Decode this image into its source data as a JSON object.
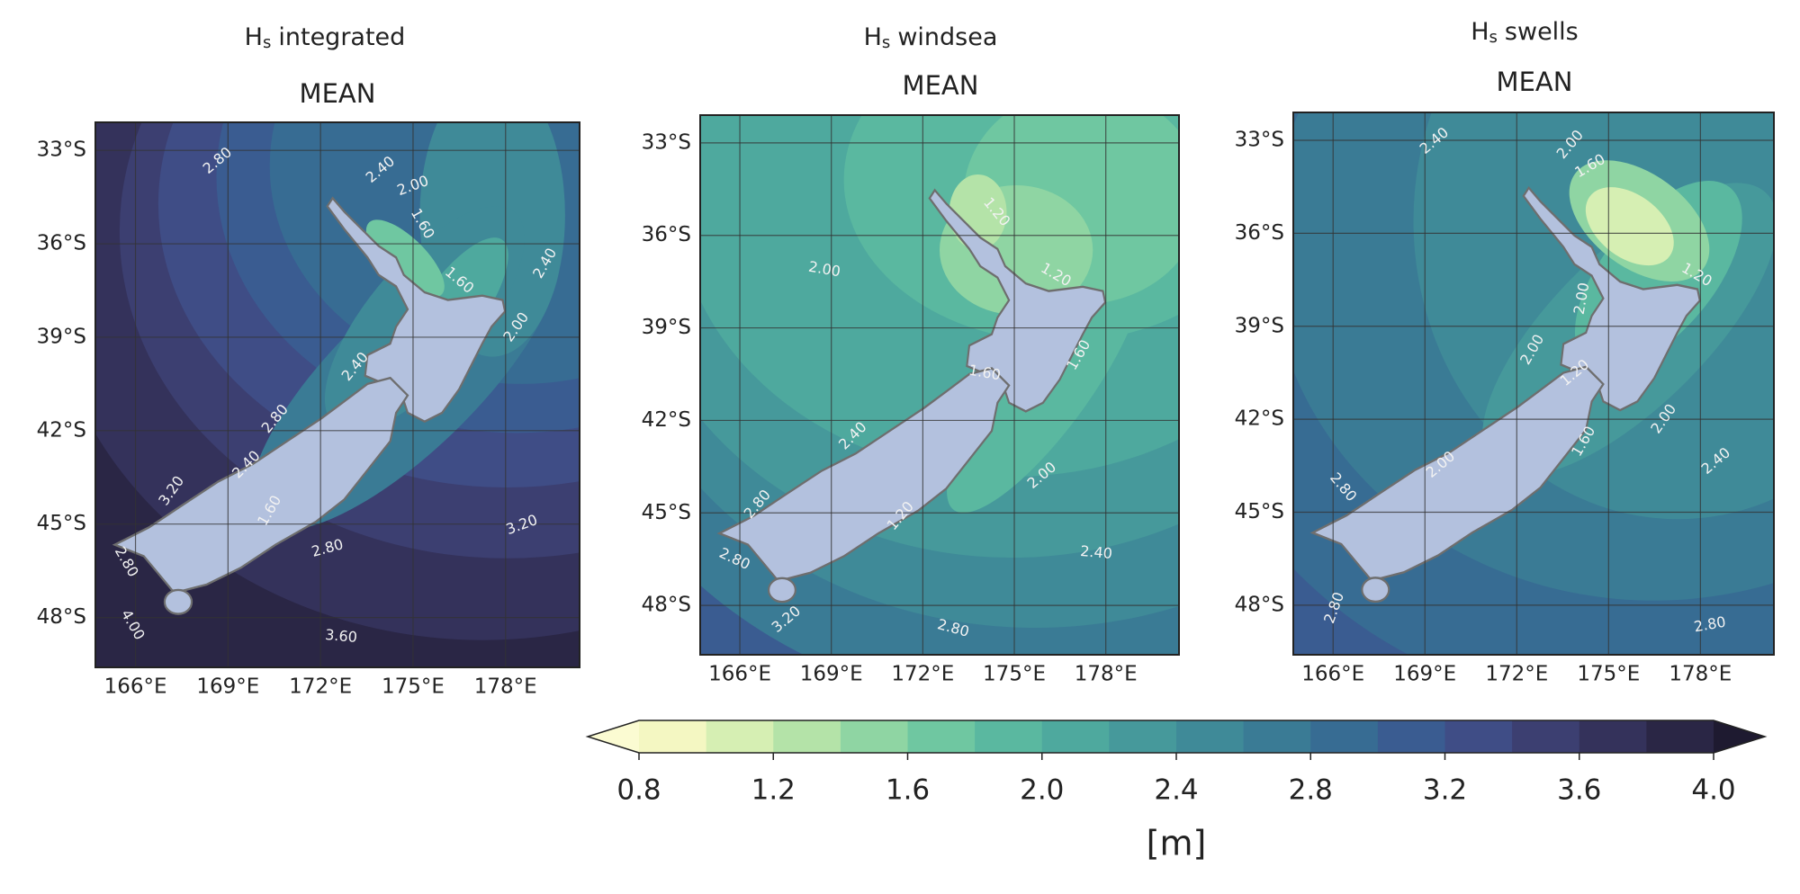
{
  "panels": [
    {
      "title": {
        "symbol": "H",
        "subscript": "s",
        "text": "integrated"
      },
      "statistic": "MEAN",
      "xlim": [
        164.7,
        180.4
      ],
      "ylim": [
        -49.6,
        -32.1
      ],
      "xticks": [
        {
          "value": 166,
          "label": "166°E"
        },
        {
          "value": 169,
          "label": "169°E"
        },
        {
          "value": 172,
          "label": "172°E"
        },
        {
          "value": 175,
          "label": "175°E"
        },
        {
          "value": 178,
          "label": "178°E"
        }
      ],
      "yticks": [
        {
          "value": -33,
          "label": "33°S"
        },
        {
          "value": -36,
          "label": "36°S"
        },
        {
          "value": -39,
          "label": "39°S"
        },
        {
          "value": -42,
          "label": "42°S"
        },
        {
          "value": -45,
          "label": "45°S"
        },
        {
          "value": -48,
          "label": "48°S"
        }
      ],
      "contour_labels": [
        "2.80",
        "2.40",
        "2.00",
        "1.60",
        "1.60",
        "2.40",
        "2.00",
        "2.40",
        "2.80",
        "2.40",
        "3.20",
        "1.60",
        "2.80",
        "3.20",
        "3.60",
        "4.00",
        "2.80"
      ]
    },
    {
      "title": {
        "symbol": "H",
        "subscript": "s",
        "text": "windsea"
      },
      "statistic": "MEAN",
      "xlim": [
        164.7,
        180.4
      ],
      "ylim": [
        -49.6,
        -32.1
      ],
      "xticks": [
        {
          "value": 166,
          "label": "166°E"
        },
        {
          "value": 169,
          "label": "169°E"
        },
        {
          "value": 172,
          "label": "172°E"
        },
        {
          "value": 175,
          "label": "175°E"
        },
        {
          "value": 178,
          "label": "178°E"
        }
      ],
      "yticks": [
        {
          "value": -33,
          "label": "33°S"
        },
        {
          "value": -36,
          "label": "36°S"
        },
        {
          "value": -39,
          "label": "39°S"
        },
        {
          "value": -42,
          "label": "42°S"
        },
        {
          "value": -45,
          "label": "45°S"
        },
        {
          "value": -48,
          "label": "48°S"
        }
      ],
      "contour_labels": [
        "2.00",
        "1.20",
        "1.20",
        "1.60",
        "1.60",
        "2.40",
        "2.00",
        "1.20",
        "2.80",
        "2.80",
        "2.40",
        "2.80",
        "3.20"
      ]
    },
    {
      "title": {
        "symbol": "H",
        "subscript": "s",
        "text": "swells"
      },
      "statistic": "MEAN",
      "xlim": [
        164.7,
        180.4
      ],
      "ylim": [
        -49.6,
        -32.1
      ],
      "xticks": [
        {
          "value": 166,
          "label": "166°E"
        },
        {
          "value": 169,
          "label": "169°E"
        },
        {
          "value": 172,
          "label": "172°E"
        },
        {
          "value": 175,
          "label": "175°E"
        },
        {
          "value": 178,
          "label": "178°E"
        }
      ],
      "yticks": [
        {
          "value": -33,
          "label": "33°S"
        },
        {
          "value": -36,
          "label": "36°S"
        },
        {
          "value": -39,
          "label": "39°S"
        },
        {
          "value": -42,
          "label": "42°S"
        },
        {
          "value": -45,
          "label": "45°S"
        },
        {
          "value": -48,
          "label": "48°S"
        }
      ],
      "contour_labels": [
        "2.40",
        "2.00",
        "1.60",
        "1.20",
        "2.00",
        "2.00",
        "1.20",
        "2.00",
        "1.60",
        "2.40",
        "2.80",
        "2.00",
        "2.80",
        "2.80"
      ]
    }
  ],
  "colorbar": {
    "label": "[m]",
    "levels": [
      0.8,
      1.0,
      1.2,
      1.4,
      1.6,
      1.8,
      2.0,
      2.2,
      2.4,
      2.6,
      2.8,
      3.0,
      3.2,
      3.4,
      3.6,
      3.8,
      4.0
    ],
    "colors": [
      "#f4f7c2",
      "#d6efb3",
      "#b4e3a8",
      "#8fd5a3",
      "#6fc7a1",
      "#5ab8a0",
      "#4ea99e",
      "#46999b",
      "#3f8a98",
      "#3a7b95",
      "#376c93",
      "#3a5c91",
      "#3f4d86",
      "#3c3f71",
      "#34325b",
      "#2a2645"
    ],
    "under_color": "#fbfbd2",
    "over_color": "#1e1a30",
    "ticks": [
      0.8,
      1.2,
      1.6,
      {
        "value": 2,
        "label": "2.0"
      },
      2.4,
      2.8,
      3.2,
      3.6,
      {
        "value": 4,
        "label": "4.0"
      }
    ]
  }
}
